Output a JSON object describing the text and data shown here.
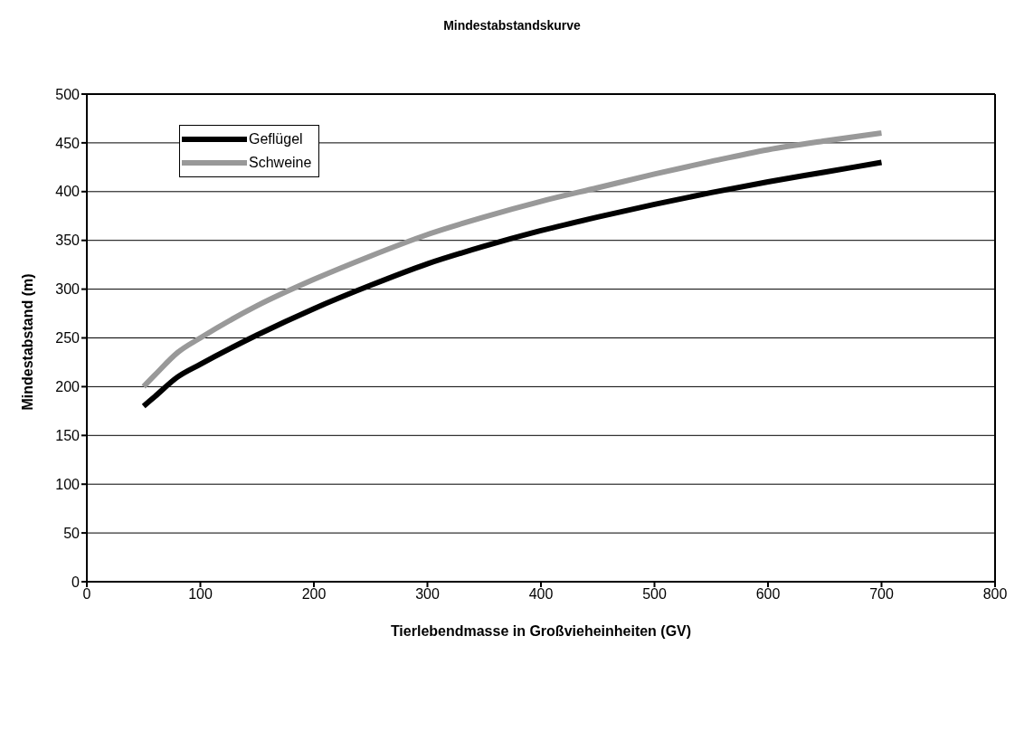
{
  "chart_data": {
    "type": "line",
    "title": "Mindestabstandskurve",
    "xlabel": "Tierlebendmasse in Großvieheinheiten (GV)",
    "ylabel": "Mindestabstand (m)",
    "x": [
      50,
      60,
      80,
      100,
      150,
      200,
      250,
      300,
      350,
      400,
      450,
      500,
      550,
      600,
      650,
      700
    ],
    "series": [
      {
        "name": "Geflügel",
        "color": "#000000",
        "values": [
          180,
          190,
          210,
          223,
          253,
          280,
          304,
          326,
          344,
          360,
          374,
          387,
          399,
          410,
          420,
          430
        ]
      },
      {
        "name": "Schweine",
        "color": "#999999",
        "values": [
          200,
          212,
          235,
          250,
          283,
          310,
          334,
          356,
          374,
          390,
          404,
          418,
          431,
          443,
          452,
          460
        ]
      }
    ],
    "xlim": [
      0,
      800
    ],
    "xticks": [
      0,
      100,
      200,
      300,
      400,
      500,
      600,
      700,
      800
    ],
    "ylim": [
      0,
      500
    ],
    "yticks": [
      0,
      50,
      100,
      150,
      200,
      250,
      300,
      350,
      400,
      450,
      500
    ],
    "grid": "y",
    "legend": "top left",
    "marker": "none",
    "line_style": "solid"
  }
}
